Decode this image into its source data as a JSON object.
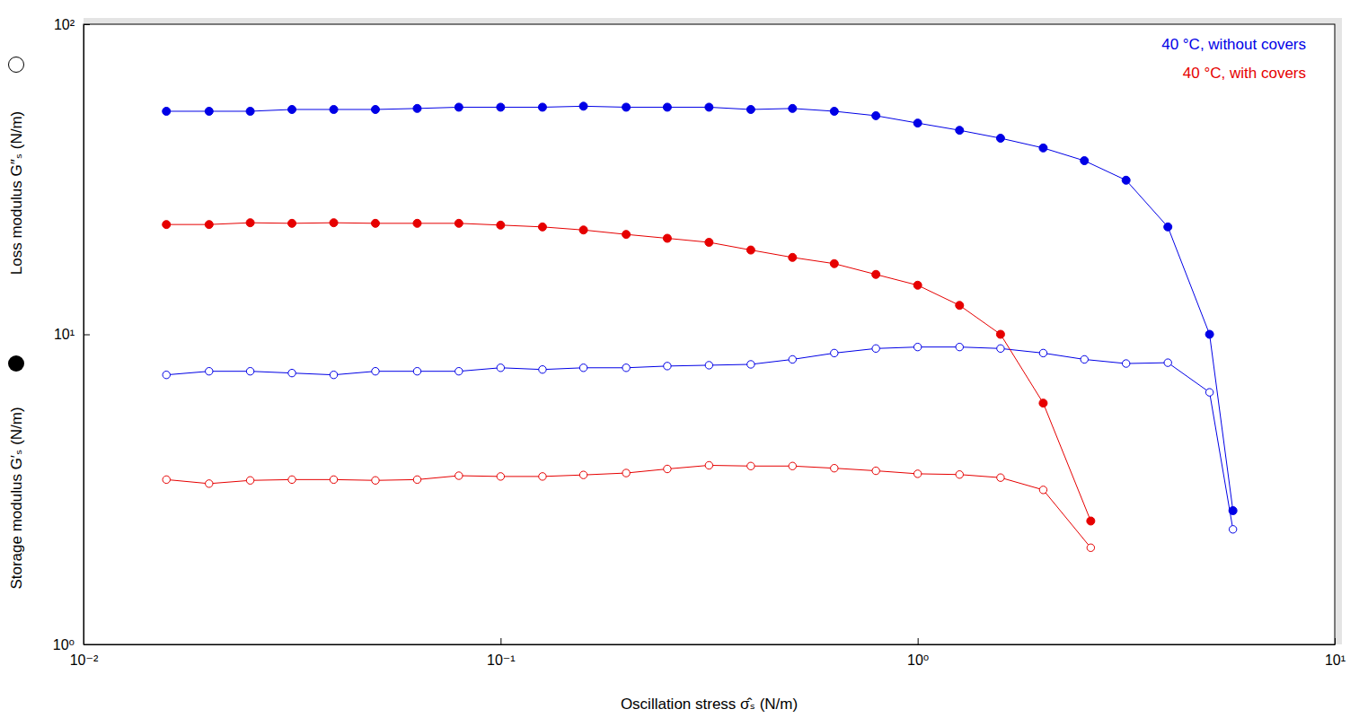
{
  "chart_data": {
    "type": "line",
    "x_label": "Oscillation stress σ̂ₛ (N/m)",
    "y_label": [
      "Storage modulus G′ₛ (N/m)",
      "Loss modulus G″ₛ (N/m)"
    ],
    "log": true,
    "grid": false,
    "legend": "top-right",
    "xlim": [
      0.01,
      10
    ],
    "ylim": [
      1,
      100
    ],
    "xticks": [
      {
        "value": 0.01,
        "label": "10⁻²"
      },
      {
        "value": 0.1,
        "label": "10⁻¹"
      },
      {
        "value": 1,
        "label": "10⁰"
      },
      {
        "value": 10,
        "label": "10¹"
      }
    ],
    "yticks": [
      {
        "value": 1,
        "label": "10⁰"
      },
      {
        "value": 10,
        "label": "10¹"
      },
      {
        "value": 100,
        "label": "10²"
      }
    ],
    "series": [
      {
        "name": "40 °C, without covers",
        "color": "#0000e6",
        "marker": "filled-circle",
        "x": [
          0.0158,
          0.02,
          0.0251,
          0.0316,
          0.0398,
          0.0501,
          0.0631,
          0.0794,
          0.1,
          0.126,
          0.158,
          0.2,
          0.251,
          0.316,
          0.398,
          0.501,
          0.631,
          0.794,
          1,
          1.26,
          1.58,
          2,
          2.51,
          3.16,
          3.98,
          5.01,
          5.7
        ],
        "values": [
          52.4,
          52.4,
          52.4,
          53.1,
          53.1,
          53.1,
          53.5,
          54,
          54,
          54,
          54.4,
          54,
          54,
          54,
          53.1,
          53.5,
          52.4,
          50.7,
          48,
          45.5,
          42.9,
          39.9,
          36.3,
          31.4,
          22.2,
          10,
          2.7
        ]
      },
      {
        "name": "40 °C, without covers",
        "color": "#0000e6",
        "marker": "open-circle",
        "x": [
          0.0158,
          0.02,
          0.0251,
          0.0316,
          0.0398,
          0.0501,
          0.0631,
          0.0794,
          0.1,
          0.126,
          0.158,
          0.2,
          0.251,
          0.316,
          0.398,
          0.501,
          0.631,
          0.794,
          1,
          1.26,
          1.58,
          2,
          2.51,
          3.16,
          3.98,
          5.01,
          5.7
        ],
        "values": [
          7.4,
          7.6,
          7.6,
          7.5,
          7.4,
          7.6,
          7.6,
          7.6,
          7.8,
          7.7,
          7.8,
          7.8,
          7.9,
          7.95,
          8,
          8.3,
          8.7,
          9,
          9.1,
          9.1,
          9,
          8.7,
          8.3,
          8.05,
          8.1,
          6.5,
          2.35
        ]
      },
      {
        "name": "40 °C, with covers",
        "color": "#e60000",
        "marker": "filled-circle",
        "x": [
          0.0158,
          0.02,
          0.0251,
          0.0316,
          0.0398,
          0.0501,
          0.0631,
          0.0794,
          0.1,
          0.126,
          0.158,
          0.2,
          0.251,
          0.316,
          0.398,
          0.501,
          0.631,
          0.794,
          1,
          1.26,
          1.58,
          2,
          2.6
        ],
        "values": [
          22.6,
          22.6,
          22.9,
          22.8,
          22.9,
          22.8,
          22.8,
          22.8,
          22.5,
          22.2,
          21.7,
          21,
          20.4,
          19.8,
          18.7,
          17.7,
          16.9,
          15.6,
          14.4,
          12.4,
          10,
          6,
          2.5
        ]
      },
      {
        "name": "40 °C, with covers",
        "color": "#e60000",
        "marker": "open-circle",
        "x": [
          0.0158,
          0.02,
          0.0251,
          0.0316,
          0.0398,
          0.0501,
          0.0631,
          0.0794,
          0.1,
          0.126,
          0.158,
          0.2,
          0.251,
          0.316,
          0.398,
          0.501,
          0.631,
          0.794,
          1,
          1.26,
          1.58,
          2,
          2.6
        ],
        "values": [
          3.4,
          3.3,
          3.38,
          3.4,
          3.4,
          3.38,
          3.4,
          3.5,
          3.48,
          3.48,
          3.52,
          3.57,
          3.68,
          3.78,
          3.76,
          3.76,
          3.7,
          3.63,
          3.55,
          3.53,
          3.45,
          3.15,
          2.05
        ]
      }
    ]
  }
}
